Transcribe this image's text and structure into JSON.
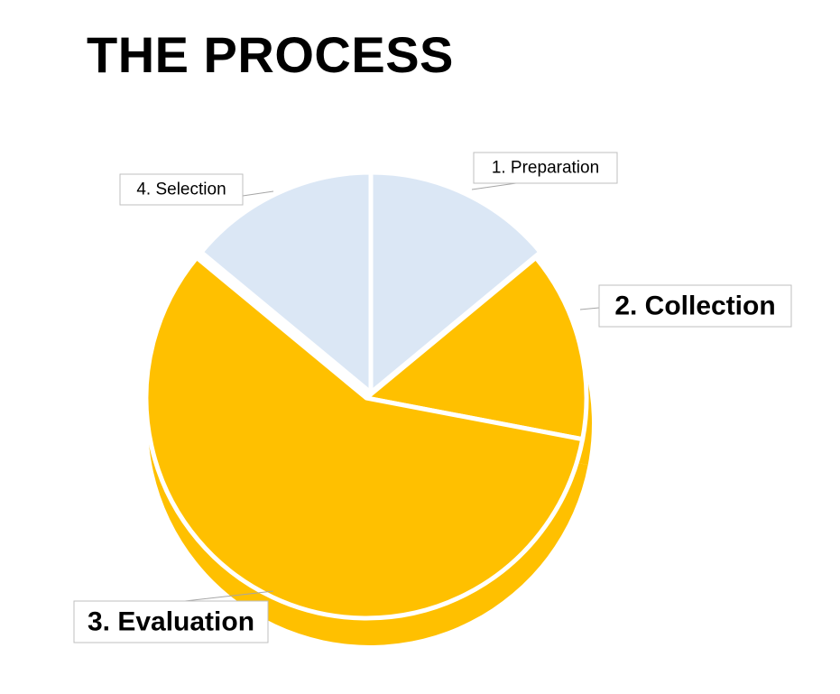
{
  "title": "THE PROCESS",
  "chart_data": {
    "type": "pie",
    "categories": [
      "1. Preparation",
      "2. Collection",
      "3. Evaluation",
      "4. Selection"
    ],
    "values": [
      14,
      14,
      58,
      14
    ],
    "colors": [
      "#dbe7f5",
      "#ffc000",
      "#ffc000",
      "#dbe7f5"
    ],
    "exploded": [
      "2. Collection",
      "3. Evaluation"
    ],
    "emphasized_labels": [
      "2. Collection",
      "3. Evaluation"
    ],
    "start_angle": "12 o'clock",
    "direction": "clockwise",
    "label_style": "callout boxes with leader lines"
  }
}
